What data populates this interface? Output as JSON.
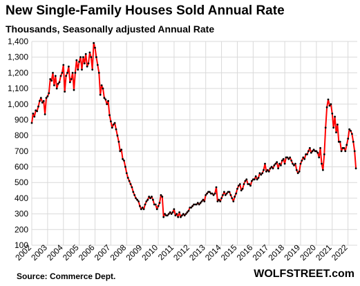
{
  "chart_data": {
    "type": "line",
    "title": "New Single-Family Houses Sold Annual Rate",
    "subtitle": "Thousands, Seasonally adjusted Annual Rate",
    "xlabel": "",
    "ylabel": "",
    "x_tick_labels": [
      "2002",
      "2003",
      "2004",
      "2005",
      "2006",
      "2007",
      "2008",
      "2009",
      "2010",
      "2011",
      "2012",
      "2013",
      "2014",
      "2015",
      "2016",
      "2017",
      "2018",
      "2019",
      "2020",
      "2021",
      "2022"
    ],
    "y_tick_labels": [
      "100",
      "200",
      "300",
      "400",
      "500",
      "600",
      "700",
      "800",
      "900",
      "1,000",
      "1,100",
      "1,200",
      "1,300",
      "1,400"
    ],
    "ylim": [
      100,
      1400
    ],
    "xlim": [
      "2002-01",
      "2022-08"
    ],
    "grid": true,
    "line_color": "#ff0000",
    "marker_color": "#000000",
    "series": [
      {
        "values": [
          880,
          940,
          920,
          960,
          955,
          985,
          1020,
          1040,
          1010,
          1020,
          935,
          1040,
          1050,
          1070,
          1160,
          1150,
          1200,
          1120,
          1180,
          1100,
          1130,
          1140,
          1180,
          1200,
          1250,
          1080,
          1180,
          1200,
          1240,
          1140,
          1160,
          1200,
          1090,
          1200,
          1280,
          1220,
          1270,
          1300,
          1220,
          1300,
          1260,
          1320,
          1240,
          1260,
          1330,
          1300,
          1220,
          1390,
          1360,
          1300,
          1250,
          1200,
          1060,
          1120,
          1100,
          1040,
          1030,
          1000,
          1020,
          930,
          890,
          850,
          870,
          880,
          840,
          800,
          760,
          700,
          710,
          650,
          640,
          600,
          560,
          530,
          510,
          490,
          470,
          440,
          420,
          400,
          390,
          380,
          350,
          330,
          340,
          330,
          360,
          380,
          390,
          410,
          400,
          410,
          390,
          360,
          360,
          330,
          350,
          370,
          420,
          410,
          280,
          300,
          290,
          290,
          300,
          310,
          300,
          310,
          330,
          290,
          300,
          280,
          310,
          280,
          290,
          300,
          290,
          300,
          310,
          320,
          340,
          340,
          350,
          360,
          360,
          360,
          370,
          360,
          370,
          380,
          390,
          380,
          420,
          430,
          440,
          440,
          430,
          430,
          420,
          430,
          470,
          380,
          390,
          380,
          400,
          420,
          440,
          420,
          430,
          440,
          440,
          420,
          400,
          380,
          410,
          430,
          460,
          480,
          490,
          450,
          460,
          490,
          510,
          520,
          490,
          490,
          480,
          510,
          520,
          520,
          540,
          520,
          530,
          560,
          550,
          560,
          580,
          620,
          570,
          580,
          570,
          590,
          600,
          590,
          610,
          620,
          630,
          590,
          620,
          610,
          640,
          650,
          620,
          660,
          660,
          650,
          660,
          640,
          620,
          610,
          620,
          580,
          560,
          570,
          620,
          640,
          660,
          650,
          680,
          680,
          700,
          720,
          690,
          700,
          710,
          700,
          700,
          690,
          660,
          720,
          620,
          580,
          680,
          850,
          980,
          1030,
          990,
          1000,
          940,
          850,
          920,
          820,
          870,
          760,
          760,
          700,
          720,
          720,
          700,
          740,
          780,
          840,
          830,
          810,
          760,
          700,
          590
        ]
      }
    ],
    "source": "Source: Commerce Dept.",
    "watermark": "WOLFSTREET.com"
  }
}
